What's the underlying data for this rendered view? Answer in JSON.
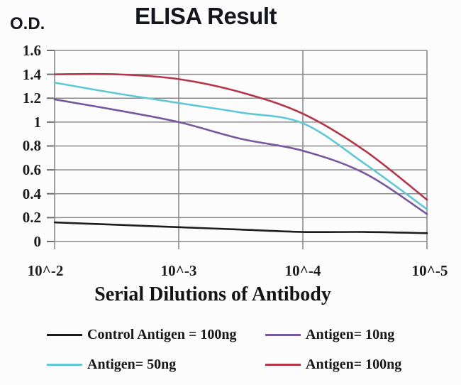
{
  "title": "ELISA Result",
  "y_axis": {
    "label": "O.D.",
    "ticks": [
      "1.6",
      "1.4",
      "1.2",
      "1",
      "0.8",
      "0.6",
      "0.4",
      "0.2",
      "0"
    ]
  },
  "x_axis": {
    "label": "Serial Dilutions of Antibody",
    "ticks": [
      "10^-2",
      "10^-3",
      "10^-4",
      "10^-5"
    ]
  },
  "legend": [
    {
      "label": "Control Antigen = 100ng",
      "color": "#1c1c1c"
    },
    {
      "label": "Antigen= 10ng",
      "color": "#75589d"
    },
    {
      "label": "Antigen= 50ng",
      "color": "#5fc8d7"
    },
    {
      "label": "Antigen= 100ng",
      "color": "#b43548"
    }
  ],
  "colors": {
    "grid": "#8a8a8a",
    "axis_tick": "#6e6e6e",
    "background": "#fcfcfc"
  },
  "chart_data": {
    "type": "line",
    "title": "ELISA Result",
    "xlabel": "Serial Dilutions of Antibody",
    "ylabel": "O.D.",
    "x_tick_labels": [
      "10^-2",
      "10^-3",
      "10^-4",
      "10^-5"
    ],
    "x_decades": [
      2,
      2.5,
      3,
      3.5,
      4,
      4.5,
      5
    ],
    "ylim": [
      0,
      1.6
    ],
    "y_tick_step": 0.2,
    "grid": true,
    "legend_position": "bottom",
    "series": [
      {
        "name": "Control Antigen = 100ng",
        "color": "#1c1c1c",
        "values": [
          0.16,
          0.14,
          0.12,
          0.1,
          0.08,
          0.08,
          0.07
        ]
      },
      {
        "name": "Antigen= 10ng",
        "color": "#75589d",
        "values": [
          1.19,
          1.1,
          1.0,
          0.86,
          0.76,
          0.57,
          0.23
        ]
      },
      {
        "name": "Antigen= 50ng",
        "color": "#5fc8d7",
        "values": [
          1.33,
          1.24,
          1.16,
          1.08,
          0.99,
          0.65,
          0.27
        ]
      },
      {
        "name": "Antigen= 100ng",
        "color": "#b43548",
        "values": [
          1.4,
          1.4,
          1.36,
          1.25,
          1.07,
          0.76,
          0.35
        ]
      }
    ]
  }
}
